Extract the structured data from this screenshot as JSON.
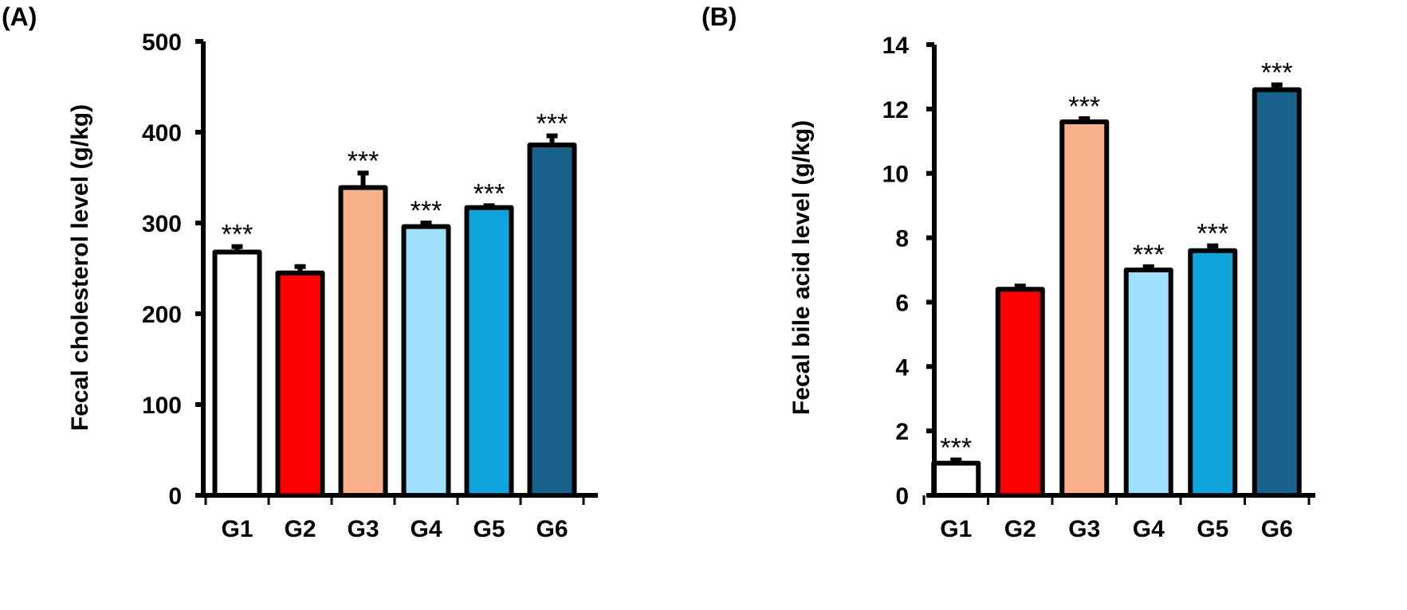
{
  "chart_data": [
    {
      "type": "bar",
      "panel_label": "(A)",
      "title": "",
      "xlabel": "",
      "ylabel": "Fecal cholesterol level (g/kg)",
      "ylim": [
        0,
        500
      ],
      "yticks": [
        0,
        100,
        200,
        300,
        400,
        500
      ],
      "grid": false,
      "categories": [
        "G1",
        "G2",
        "G3",
        "G4",
        "G5",
        "G6"
      ],
      "values": [
        268,
        245,
        339,
        296,
        317,
        386
      ],
      "errors": [
        6,
        7,
        16,
        4,
        2,
        10
      ],
      "annotations": [
        "***",
        "",
        "***",
        "***",
        "***",
        "***"
      ],
      "colors": [
        "#ffffff",
        "#ff0000",
        "#f9b08a",
        "#9ee0fc",
        "#0ea5dc",
        "#17618a"
      ]
    },
    {
      "type": "bar",
      "panel_label": "(B)",
      "title": "",
      "xlabel": "",
      "ylabel": "Fecal bile acid level (g/kg)",
      "ylim": [
        0,
        14
      ],
      "yticks": [
        0,
        2,
        4,
        6,
        8,
        10,
        12,
        14
      ],
      "grid": false,
      "categories": [
        "G1",
        "G2",
        "G3",
        "G4",
        "G5",
        "G6"
      ],
      "values": [
        1.0,
        6.4,
        11.6,
        7.0,
        7.6,
        12.6
      ],
      "errors": [
        0.1,
        0.1,
        0.1,
        0.1,
        0.15,
        0.15
      ],
      "annotations": [
        "***",
        "",
        "***",
        "***",
        "***",
        "***"
      ],
      "colors": [
        "#ffffff",
        "#ff0000",
        "#f9b08a",
        "#9ee0fc",
        "#0ea5dc",
        "#17618a"
      ]
    }
  ]
}
